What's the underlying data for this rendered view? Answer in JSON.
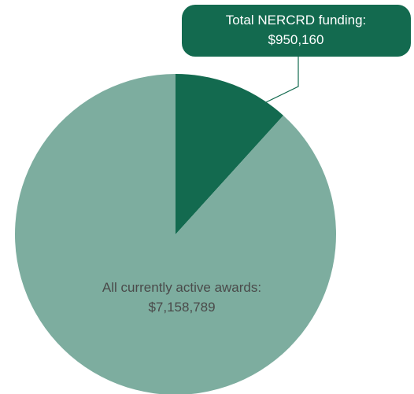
{
  "chart_data": {
    "type": "pie",
    "slices": [
      {
        "label": "Total NERCRD funding:",
        "value": 950160,
        "value_text": "$950,160",
        "color": "#136A4F"
      },
      {
        "label": "All currently active awards:",
        "value": 7158789,
        "value_text": "$7,158,789",
        "color": "#7DAD9F"
      }
    ],
    "legend": "none",
    "callout_color": "#136A4F",
    "callout_text_color": "#ffffff",
    "inner_label_color": "#4A4A4A"
  }
}
